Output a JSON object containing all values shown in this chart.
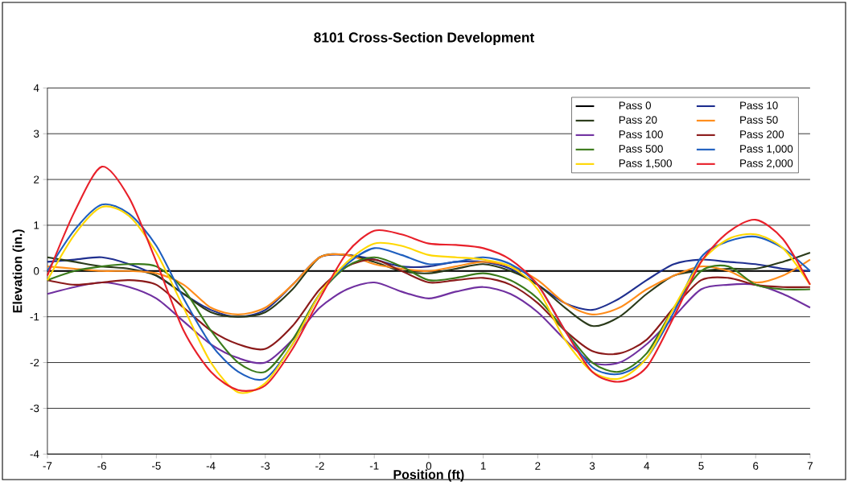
{
  "chart_data": {
    "type": "line",
    "title": "8101 Cross-Section Development",
    "xlabel": "Position (ft)",
    "ylabel": "Elevation (in.)",
    "x": [
      -7,
      -6.5,
      -6,
      -5.5,
      -5,
      -4.5,
      -4,
      -3.5,
      -3,
      -2.5,
      -2,
      -1.5,
      -1,
      -0.5,
      0,
      0.5,
      1,
      1.5,
      2,
      2.5,
      3,
      3.5,
      4,
      4.5,
      5,
      5.5,
      6,
      6.5,
      7
    ],
    "xlim": [
      -7,
      7
    ],
    "xticks": [
      -7,
      -6,
      -5,
      -4,
      -3,
      -2,
      -1,
      0,
      1,
      2,
      3,
      4,
      5,
      6,
      7
    ],
    "ylim": [
      -4,
      4
    ],
    "yticks": [
      -4,
      -3,
      -2,
      -1,
      0,
      1,
      2,
      3,
      4
    ],
    "grid": "y",
    "legend": "top right",
    "marker": "none",
    "line_style": "solid",
    "series": [
      {
        "name": "Pass 0",
        "color": "#000000",
        "values": [
          0,
          0,
          0,
          0,
          0,
          0,
          0,
          0,
          0,
          0,
          0,
          0,
          0,
          0,
          0,
          0,
          0,
          0,
          0,
          0,
          0,
          0,
          0,
          0,
          0,
          0,
          0,
          0,
          0
        ]
      },
      {
        "name": "Pass 10",
        "color": "#1f2f8f",
        "values": [
          0.2,
          0.25,
          0.3,
          0.15,
          -0.1,
          -0.5,
          -0.85,
          -1.0,
          -0.85,
          -0.3,
          0.3,
          0.35,
          0.25,
          0.1,
          0.1,
          0.2,
          0.2,
          0.05,
          -0.3,
          -0.7,
          -0.85,
          -0.6,
          -0.2,
          0.15,
          0.25,
          0.2,
          0.15,
          0.05,
          0.0
        ]
      },
      {
        "name": "Pass 20",
        "color": "#2a3a1a",
        "values": [
          0.3,
          0.2,
          0.1,
          0.05,
          -0.1,
          -0.5,
          -0.9,
          -1.0,
          -0.9,
          -0.4,
          0.3,
          0.35,
          0.2,
          0.0,
          -0.05,
          0.05,
          0.15,
          0.0,
          -0.3,
          -0.8,
          -1.2,
          -1.0,
          -0.5,
          -0.1,
          0.0,
          0.05,
          0.05,
          0.2,
          0.4
        ]
      },
      {
        "name": "Pass 50",
        "color": "#ff8c1a",
        "values": [
          0.1,
          0.05,
          0.0,
          0.0,
          -0.05,
          -0.3,
          -0.8,
          -0.95,
          -0.8,
          -0.3,
          0.3,
          0.35,
          0.15,
          0.05,
          0.0,
          0.1,
          0.2,
          0.1,
          -0.2,
          -0.7,
          -0.95,
          -0.8,
          -0.4,
          -0.1,
          0.1,
          0.0,
          -0.25,
          -0.1,
          0.25
        ]
      },
      {
        "name": "Pass 100",
        "color": "#7030a0",
        "values": [
          -0.5,
          -0.35,
          -0.25,
          -0.35,
          -0.6,
          -1.1,
          -1.6,
          -1.9,
          -2.0,
          -1.5,
          -0.8,
          -0.4,
          -0.25,
          -0.45,
          -0.6,
          -0.45,
          -0.35,
          -0.5,
          -0.9,
          -1.5,
          -2.0,
          -2.0,
          -1.6,
          -1.0,
          -0.4,
          -0.3,
          -0.3,
          -0.5,
          -0.8
        ]
      },
      {
        "name": "Pass 200",
        "color": "#8b1a1a",
        "values": [
          -0.2,
          -0.3,
          -0.25,
          -0.2,
          -0.3,
          -0.8,
          -1.3,
          -1.6,
          -1.7,
          -1.2,
          -0.4,
          0.1,
          0.25,
          0.0,
          -0.25,
          -0.2,
          -0.15,
          -0.3,
          -0.7,
          -1.3,
          -1.75,
          -1.8,
          -1.5,
          -0.8,
          -0.2,
          -0.15,
          -0.3,
          -0.35,
          -0.35
        ]
      },
      {
        "name": "Pass 500",
        "color": "#3a7a1a",
        "values": [
          -0.2,
          0.0,
          0.1,
          0.15,
          0.1,
          -0.4,
          -1.3,
          -2.0,
          -2.2,
          -1.5,
          -0.5,
          0.1,
          0.3,
          0.1,
          -0.2,
          -0.15,
          -0.05,
          -0.2,
          -0.6,
          -1.3,
          -2.0,
          -2.2,
          -1.8,
          -0.8,
          0.0,
          0.1,
          -0.3,
          -0.4,
          -0.4
        ]
      },
      {
        "name": "Pass 1,000",
        "color": "#1f5fbf",
        "values": [
          0.0,
          0.9,
          1.45,
          1.25,
          0.55,
          -0.6,
          -1.6,
          -2.2,
          -2.35,
          -1.6,
          -0.5,
          0.15,
          0.5,
          0.35,
          0.15,
          0.2,
          0.3,
          0.15,
          -0.3,
          -1.3,
          -2.1,
          -2.25,
          -1.9,
          -0.9,
          0.3,
          0.65,
          0.75,
          0.5,
          0.0
        ]
      },
      {
        "name": "Pass 1,500",
        "color": "#ffd700",
        "values": [
          -0.2,
          0.8,
          1.4,
          1.2,
          0.4,
          -0.8,
          -2.0,
          -2.65,
          -2.45,
          -1.6,
          -0.5,
          0.2,
          0.6,
          0.55,
          0.35,
          0.3,
          0.25,
          0.1,
          -0.4,
          -1.5,
          -2.2,
          -2.35,
          -1.9,
          -0.8,
          0.2,
          0.7,
          0.8,
          0.5,
          -0.3
        ]
      },
      {
        "name": "Pass 2,000",
        "color": "#e8202a",
        "values": [
          -0.1,
          1.3,
          2.28,
          1.6,
          0.2,
          -1.3,
          -2.2,
          -2.6,
          -2.5,
          -1.7,
          -0.6,
          0.4,
          0.88,
          0.8,
          0.6,
          0.57,
          0.5,
          0.25,
          -0.3,
          -1.3,
          -2.2,
          -2.42,
          -2.1,
          -1.0,
          0.2,
          0.85,
          1.12,
          0.7,
          -0.3
        ]
      }
    ]
  }
}
